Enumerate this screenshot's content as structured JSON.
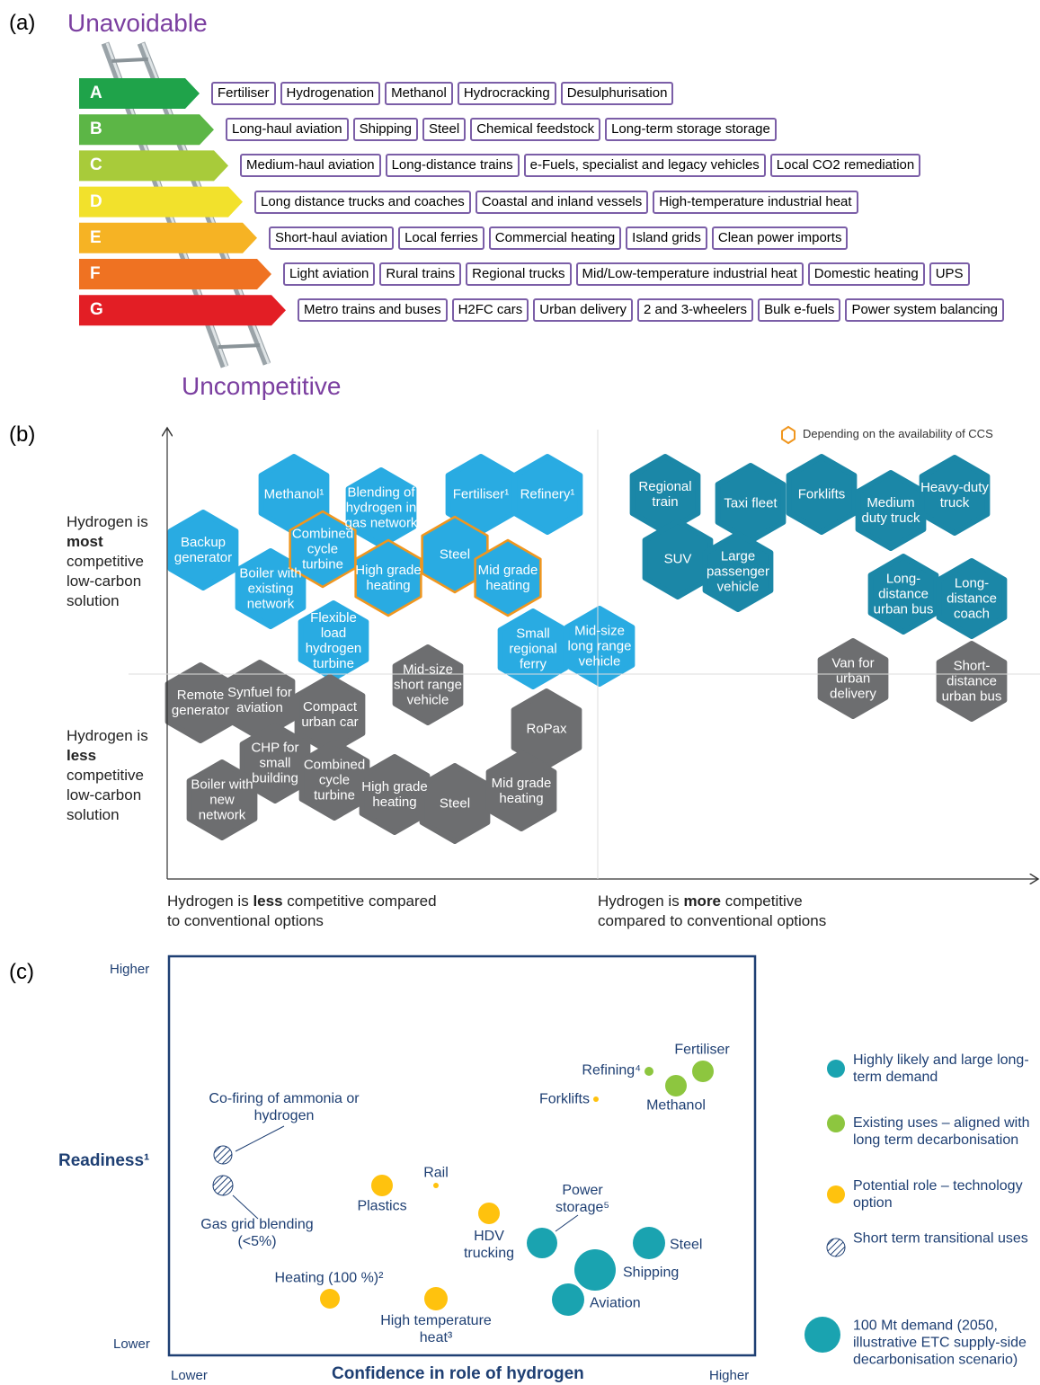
{
  "panel_a": {
    "label": "(a)",
    "top_label": "Unavoidable",
    "bottom_label": "Uncompetitive",
    "rows": [
      {
        "grade": "A",
        "items": [
          "Fertiliser",
          "Hydrogenation",
          "Methanol",
          "Hydrocracking",
          "Desulphurisation"
        ]
      },
      {
        "grade": "B",
        "items": [
          "Long-haul aviation",
          "Shipping",
          "Steel",
          "Chemical feedstock",
          "Long-term storage storage"
        ]
      },
      {
        "grade": "C",
        "items": [
          "Medium-haul aviation",
          "Long-distance trains",
          "e-Fuels, specialist and legacy vehicles",
          "Local CO2 remediation"
        ]
      },
      {
        "grade": "D",
        "items": [
          "Long distance trucks and coaches",
          "Coastal and inland vessels",
          "High-temperature industrial heat"
        ]
      },
      {
        "grade": "E",
        "items": [
          "Short-haul aviation",
          "Local ferries",
          "Commercial heating",
          "Island grids",
          "Clean power imports"
        ]
      },
      {
        "grade": "F",
        "items": [
          "Light aviation",
          "Rural trains",
          "Regional trucks",
          "Mid/Low-temperature industrial heat",
          "Domestic heating",
          "UPS"
        ]
      },
      {
        "grade": "G",
        "items": [
          "Metro trains and buses",
          "H2FC cars",
          "Urban delivery",
          "2 and 3-wheelers",
          "Bulk e-fuels",
          "Power system balancing"
        ]
      }
    ]
  },
  "panel_b": {
    "label": "(b)",
    "legend": "Depending on the availability of CCS",
    "y_labels": [
      {
        "before": "Hydrogen is ",
        "bold": "most",
        "after": " competitive low-carbon solution"
      },
      {
        "before": "Hydrogen is ",
        "bold": "less",
        "after": " competitive low-carbon solution"
      }
    ],
    "x_labels": [
      {
        "before": "Hydrogen is ",
        "bold": "less",
        "after": " competitive compared to conventional options"
      },
      {
        "before": "Hydrogen is ",
        "bold": "more",
        "after": " competitive compared to conventional options"
      }
    ],
    "hexagons": [
      "Methanol¹",
      "Blending of hydrogen in gas network",
      "Fertiliser¹",
      "Refinery¹",
      "Backup generator",
      "Boiler with existing network",
      "Combined cycle turbine",
      "High grade heating",
      "Steel",
      "Mid grade heating",
      "Flexible load hydrogen turbine",
      "Small regional ferry",
      "Mid-size long range vehicle",
      "Regional train",
      "Taxi fleet",
      "Forklifts",
      "Medium duty truck",
      "Heavy-duty truck",
      "SUV",
      "Large passenger vehicle",
      "Long-distance urban bus",
      "Long-distance coach",
      "Van for urban delivery",
      "Short-distance urban bus",
      "Remote generator",
      "Synfuel for aviation",
      "Mid-size short range vehicle",
      "Compact urban car",
      "RoPax",
      "CHP for small building",
      "Combined cycle turbine",
      "High grade heating",
      "Steel",
      "Mid grade heating",
      "Boiler with new network"
    ]
  },
  "panel_c": {
    "label": "(c)",
    "y_axis": {
      "title": "Readiness¹",
      "high": "Higher",
      "low": "Lower"
    },
    "x_axis": {
      "title": "Confidence in role of hydrogen",
      "low": "Lower",
      "high": "Higher"
    },
    "points": [
      "Fertiliser",
      "Refining⁴",
      "Methanol",
      "Forklifts",
      "Co-firing of ammonia or hydrogen",
      "Gas grid blending (<5%)",
      "Rail",
      "Plastics",
      "HDV trucking",
      "Power storage⁵",
      "Steel",
      "Shipping",
      "Aviation",
      "Heating (100 %)²",
      "High temperature heat³"
    ],
    "legend": [
      "Highly likely and large long-term demand",
      "Existing uses – aligned with long term decarbonisation",
      "Potential role – technology option",
      "Short term transitional uses",
      "100 Mt demand (2050, illustrative ETC supply-side decarbonisation scenario)"
    ]
  }
}
